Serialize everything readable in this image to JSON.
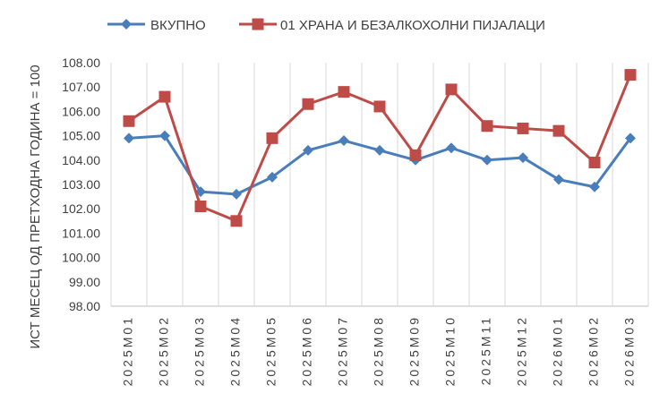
{
  "chart_data": {
    "type": "line",
    "title": "",
    "xlabel": "",
    "ylabel": "ИСТ МЕСЕЦ ОД ПРЕТХОДНА ГОДИНА = 100",
    "ylim": [
      98.0,
      108.0
    ],
    "y_ticks": [
      "98.00",
      "99.00",
      "100.00",
      "101.00",
      "102.00",
      "103.00",
      "104.00",
      "105.00",
      "106.00",
      "107.00",
      "108.00"
    ],
    "grid": "vertical",
    "legend_position": "top",
    "categories": [
      "2025M01",
      "2025M02",
      "2025M03",
      "2025M04",
      "2025M05",
      "2025M06",
      "2025M07",
      "2025M08",
      "2025M09",
      "2025M10",
      "2025M11",
      "2025M12",
      "2026M01",
      "2026M02",
      "2026M03"
    ],
    "series": [
      {
        "name": "ВКУПНО",
        "color": "#4a7ebb",
        "marker": "diamond",
        "values": [
          104.9,
          105.0,
          102.7,
          102.6,
          103.3,
          104.4,
          104.8,
          104.4,
          104.0,
          104.5,
          104.0,
          104.1,
          103.2,
          102.9,
          104.9
        ]
      },
      {
        "name": "01 ХРАНА И БЕЗАЛКОХОЛНИ ПИЈАЛАЦИ",
        "color": "#be4b48",
        "marker": "square",
        "values": [
          105.6,
          106.6,
          102.1,
          101.5,
          104.9,
          106.3,
          106.8,
          106.2,
          104.2,
          106.9,
          105.4,
          105.3,
          105.2,
          103.9,
          107.5
        ]
      }
    ]
  }
}
